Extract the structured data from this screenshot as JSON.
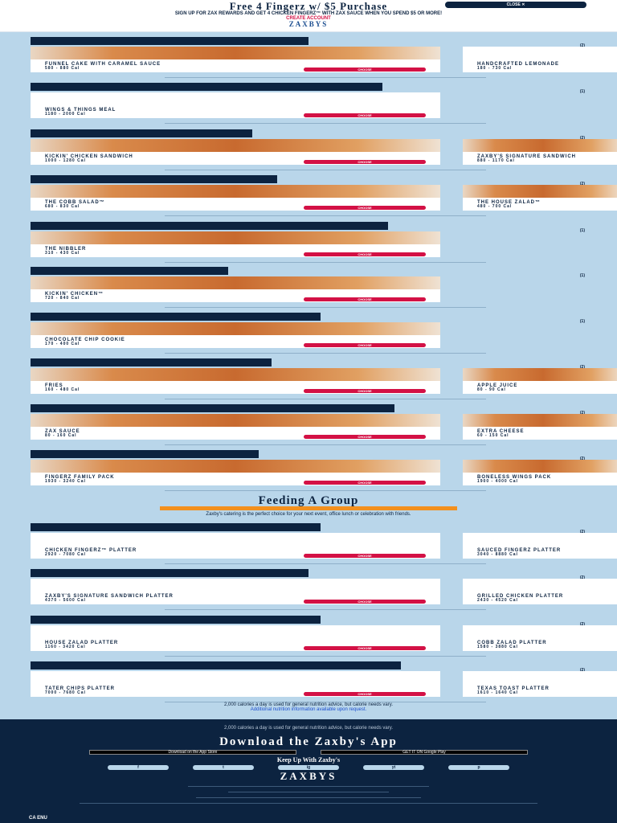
{
  "header": {
    "title": "Free 4 Fingerz w/ $5 Purchase",
    "promo": "SIGN UP FOR ZAX REWARDS AND GET 4 CHICKEN FINGERZ™ WITH ZAX SAUCE WHEN YOU SPEND $5 OR MORE!",
    "create_account": "CREATE ACCOUNT",
    "logo": "ZAXBYS",
    "close_label": "CLOSE ✕"
  },
  "colors": {
    "navy": "#0c2340",
    "red": "#d31145",
    "sky": "#b9d6ea",
    "orange": "#f3901d"
  },
  "choose_label": "CHOOSE",
  "sections": [
    {
      "count": "(2)",
      "bar": 0.45,
      "items": [
        {
          "name": "Funnel Cake with Caramel Sauce",
          "cal": "580 - 880 Cal",
          "img": true
        },
        {
          "name": "Handcrafted Lemonade",
          "cal": "180 - 730 Cal",
          "img": false
        }
      ]
    },
    {
      "count": "(1)",
      "bar": 0.57,
      "items": [
        {
          "name": "Wings & Things Meal",
          "cal": "1180 - 2000 Cal",
          "img": false
        }
      ]
    },
    {
      "count": "(2)",
      "bar": 0.36,
      "items": [
        {
          "name": "Kickin' Chicken Sandwich",
          "cal": "1000 - 1280 Cal",
          "img": true
        },
        {
          "name": "Zaxby's Signature Sandwich",
          "cal": "880 - 1170 Cal",
          "img": true
        }
      ]
    },
    {
      "count": "(2)",
      "bar": 0.4,
      "items": [
        {
          "name": "The Cobb Salad™",
          "cal": "680 - 830 Cal",
          "img": true
        },
        {
          "name": "The House Zalad™",
          "cal": "480 - 700 Cal",
          "img": true
        }
      ]
    },
    {
      "count": "(1)",
      "bar": 0.58,
      "items": [
        {
          "name": "The Nibbler",
          "cal": "310 - 430 Cal",
          "img": true
        }
      ]
    },
    {
      "count": "(1)",
      "bar": 0.32,
      "items": [
        {
          "name": "Kickin' Chicken™",
          "cal": "720 - 840 Cal",
          "img": true
        }
      ]
    },
    {
      "count": "(1)",
      "bar": 0.47,
      "items": [
        {
          "name": "Chocolate Chip Cookie",
          "cal": "170 - 400 Cal",
          "img": true
        }
      ]
    },
    {
      "count": "(2)",
      "bar": 0.39,
      "items": [
        {
          "name": "Fries",
          "cal": "160 - 480 Cal",
          "img": true
        },
        {
          "name": "Apple Juice",
          "cal": "80 - 90 Cal",
          "img": true
        }
      ]
    },
    {
      "count": "(2)",
      "bar": 0.59,
      "items": [
        {
          "name": "Zax Sauce",
          "cal": "80 - 160 Cal",
          "img": true
        },
        {
          "name": "Extra Cheese",
          "cal": "60 - 150 Cal",
          "img": true
        }
      ]
    },
    {
      "count": "(2)",
      "bar": 0.37,
      "items": [
        {
          "name": "Fingerz Family Pack",
          "cal": "1930 - 3240 Cal",
          "img": true
        },
        {
          "name": "Boneless Wings Pack",
          "cal": "1900 - 4000 Cal",
          "img": true
        }
      ]
    }
  ],
  "feeding": {
    "title": "Feeding A Group",
    "description": "Zaxby's catering is the perfect choice for your next event, office lunch or celebration with friends."
  },
  "group_sections": [
    {
      "count": "(2)",
      "bar": 0.47,
      "items": [
        {
          "name": "Chicken Fingerz™ Platter",
          "cal": "2920 - 7080 Cal",
          "img": false
        },
        {
          "name": "Sauced Fingerz Platter",
          "cal": "3040 - 8880 Cal",
          "img": false
        }
      ]
    },
    {
      "count": "(2)",
      "bar": 0.45,
      "items": [
        {
          "name": "Zaxby's Signature Sandwich Platter",
          "cal": "4370 - 5600 Cal",
          "img": false
        },
        {
          "name": "Grilled Chicken Platter",
          "cal": "2430 - 4520 Cal",
          "img": false
        }
      ]
    },
    {
      "count": "(2)",
      "bar": 0.47,
      "items": [
        {
          "name": "House Zalad Platter",
          "cal": "1160 - 3420 Cal",
          "img": false
        },
        {
          "name": "Cobb Zalad Platter",
          "cal": "1580 - 3880 Cal",
          "img": false
        }
      ]
    },
    {
      "count": "(2)",
      "bar": 0.6,
      "items": [
        {
          "name": "Tater Chips Platter",
          "cal": "7000 - 7680 Cal",
          "img": false
        },
        {
          "name": "Texas Toast Platter",
          "cal": "1610 - 1640 Cal",
          "img": false
        }
      ]
    }
  ],
  "disclaimer": {
    "text": "2,000 calories a day is used for general nutrition advice, but calorie needs vary.",
    "link": "Additional nutrition information available upon request."
  },
  "footer": {
    "small": "2,000 calories a day is used for general nutrition advice, but calorie needs vary.",
    "download": "Download the Zaxby's App",
    "app_store": "Download on the App Store",
    "google_play": "GET IT ON Google Play",
    "keep_up": "Keep Up With Zaxby's",
    "social": [
      "f",
      "t",
      "ig",
      "yt",
      "p"
    ],
    "logo": "ZAXBYS",
    "language": "CA  ENU"
  }
}
